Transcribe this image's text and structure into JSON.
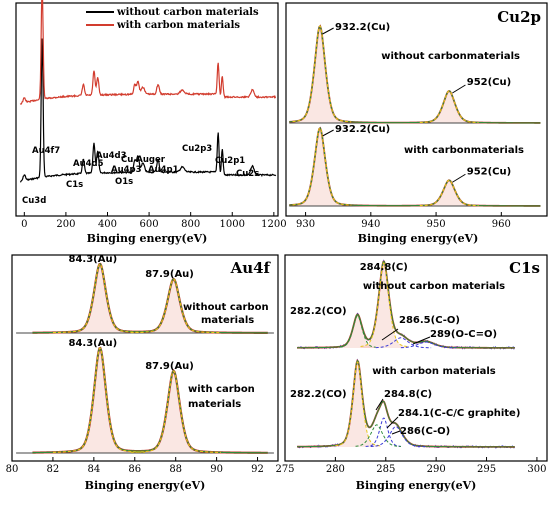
{
  "chart_data": [
    {
      "id": "survey",
      "type": "line",
      "xlabel": "Binging energy(eV)",
      "xlim": [
        -40,
        1220
      ],
      "xticks": [
        0,
        200,
        400,
        600,
        800,
        1000,
        1200
      ],
      "legend": [
        {
          "name": "without carbon materials",
          "color": "#000000"
        },
        {
          "name": "with carbon materials",
          "color": "#d23c2e"
        }
      ],
      "legend_position": "top-right",
      "peak_labels": [
        {
          "text": "Cu3d",
          "x": 0
        },
        {
          "text": "Au4f7",
          "x": 84
        },
        {
          "text": "Au4d5",
          "x": 335
        },
        {
          "text": "C1s",
          "x": 284
        },
        {
          "text": "Au4d3",
          "x": 353
        },
        {
          "text": "Au4p3",
          "x": 546
        },
        {
          "text": "O1s",
          "x": 531
        },
        {
          "text": "Cu Auger",
          "x": 570
        },
        {
          "text": "Au4p1",
          "x": 643
        },
        {
          "text": "Cu2p3",
          "x": 932
        },
        {
          "text": "Cu2p1",
          "x": 952
        },
        {
          "text": "Cu2s",
          "x": 1097
        }
      ]
    },
    {
      "id": "cu2p",
      "type": "line",
      "title": "Cu2p",
      "xlabel": "Binging energy(eV)",
      "xlim": [
        927,
        967
      ],
      "xticks": [
        930,
        940,
        950,
        960
      ],
      "curves": [
        {
          "name": "without carbonmaterials",
          "peaks": [
            {
              "x": 932.2,
              "label": "932.2(Cu)"
            },
            {
              "x": 952,
              "label": "952(Cu)"
            }
          ]
        },
        {
          "name": "with carbonmaterials",
          "peaks": [
            {
              "x": 932.2,
              "label": "932.2(Cu)"
            },
            {
              "x": 952,
              "label": "952(Cu)"
            }
          ]
        }
      ]
    },
    {
      "id": "au4f",
      "type": "line",
      "title": "Au4f",
      "xlabel": "Binging energy(eV)",
      "xlim": [
        80,
        93
      ],
      "xticks": [
        80,
        82,
        84,
        86,
        88,
        90,
        92
      ],
      "curves": [
        {
          "name_lines": [
            "without carbon",
            "materials"
          ],
          "peaks": [
            {
              "x": 84.3,
              "label": "84.3(Au)"
            },
            {
              "x": 87.9,
              "label": "87.9(Au)"
            }
          ]
        },
        {
          "name_lines": [
            "with carbon",
            "materials"
          ],
          "peaks": [
            {
              "x": 84.3,
              "label": "84.3(Au)"
            },
            {
              "x": 87.9,
              "label": "87.9(Au)"
            }
          ]
        }
      ]
    },
    {
      "id": "c1s",
      "type": "line",
      "title": "C1s",
      "xlabel": "Binging energy(eV)",
      "xlim": [
        275,
        301
      ],
      "xticks": [
        275,
        280,
        285,
        290,
        295,
        300
      ],
      "curves": [
        {
          "name": "without carbon materials",
          "peaks": [
            {
              "x": 284.8,
              "label": "284.8(C)"
            },
            {
              "x": 282.2,
              "label": "282.2(CO)"
            },
            {
              "x": 286.5,
              "label": "286.5(C-O)"
            },
            {
              "x": 289,
              "label": "289(O-C=O)"
            }
          ]
        },
        {
          "name": "with carbon materials",
          "peaks": [
            {
              "x": 282.2,
              "label": "282.2(CO)"
            },
            {
              "x": 284.8,
              "label": "284.8(C)"
            },
            {
              "x": 284.1,
              "label": "284.1(C-C/C graphite)"
            },
            {
              "x": 286,
              "label": "286(C-O)"
            }
          ]
        }
      ]
    }
  ],
  "colors": {
    "without": "#000000",
    "with": "#d23c2e",
    "envelope": "#c0392b",
    "fit": "#2e8b3a",
    "component": "#e6c619",
    "component2": "#3a3ad6"
  }
}
